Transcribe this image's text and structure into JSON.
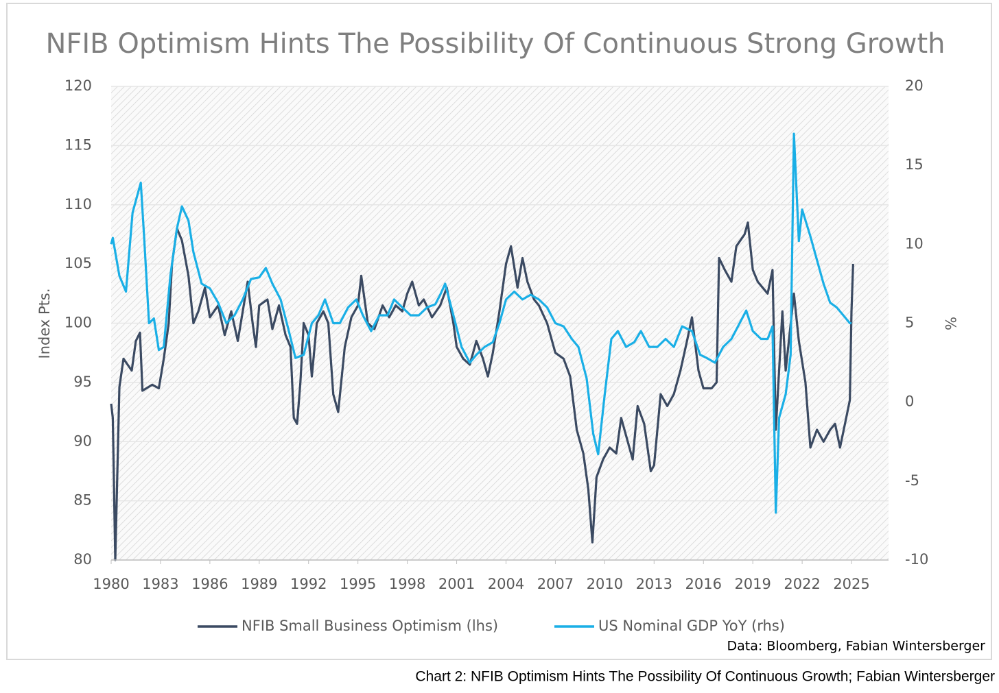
{
  "chart_data": {
    "type": "line",
    "title": "NFIB Optimism Hints The Possibility Of Continuous Strong Growth",
    "ylabel": "Index Pts.",
    "y2label": "%",
    "source": "Data: Bloomberg, Fabian Wintersberger",
    "caption": "Chart 2: NFIB Optimism Hints The Possibility Of Continuous Growth; Fabian Wintersberger",
    "xlim": [
      1980,
      2027.25
    ],
    "xticks": [
      1980,
      1983,
      1986,
      1989,
      1992,
      1995,
      1998,
      2001,
      2004,
      2007,
      2010,
      2013,
      2016,
      2019,
      2022,
      2025
    ],
    "ylim": [
      80,
      120
    ],
    "yticks": [
      80,
      85,
      90,
      95,
      100,
      105,
      110,
      115,
      120
    ],
    "y2lim": [
      -10,
      20
    ],
    "y2ticks": [
      -10,
      -5,
      0,
      5,
      10,
      15,
      20
    ],
    "grid": true,
    "legend": "bottom",
    "series": [
      {
        "name": "NFIB Small Business Optimism (lhs)",
        "color": "#3b4a62",
        "x": [
          1980.0,
          1980.1,
          1980.25,
          1980.5,
          1980.75,
          1981.0,
          1981.25,
          1981.5,
          1981.75,
          1981.9,
          1982.5,
          1982.9,
          1983.2,
          1983.5,
          1983.7,
          1984.0,
          1984.3,
          1984.7,
          1985.0,
          1985.3,
          1985.7,
          1986.0,
          1986.5,
          1986.9,
          1987.3,
          1987.7,
          1988.0,
          1988.3,
          1988.6,
          1988.8,
          1989.0,
          1989.5,
          1989.8,
          1990.2,
          1990.6,
          1990.9,
          1991.1,
          1991.3,
          1991.5,
          1991.7,
          1992.0,
          1992.2,
          1992.5,
          1992.9,
          1993.2,
          1993.5,
          1993.8,
          1994.2,
          1994.6,
          1995.0,
          1995.2,
          1995.6,
          1996.0,
          1996.5,
          1996.9,
          1997.3,
          1997.7,
          1998.0,
          1998.3,
          1998.7,
          1999.0,
          1999.5,
          2000.0,
          2000.4,
          2000.8,
          2001.0,
          2001.4,
          2001.8,
          2002.2,
          2002.6,
          2002.9,
          2003.2,
          2003.6,
          2004.0,
          2004.3,
          2004.7,
          2005.0,
          2005.3,
          2005.7,
          2006.0,
          2006.5,
          2007.0,
          2007.5,
          2007.9,
          2008.3,
          2008.7,
          2009.0,
          2009.25,
          2009.5,
          2009.9,
          2010.3,
          2010.7,
          2011.0,
          2011.3,
          2011.7,
          2012.0,
          2012.4,
          2012.8,
          2013.0,
          2013.4,
          2013.8,
          2014.2,
          2014.6,
          2015.0,
          2015.3,
          2015.7,
          2016.0,
          2016.5,
          2016.8,
          2016.95,
          2017.3,
          2017.7,
          2018.0,
          2018.5,
          2018.7,
          2019.0,
          2019.3,
          2019.6,
          2019.9,
          2020.2,
          2020.4,
          2020.8,
          2021.0,
          2021.5,
          2021.8,
          2022.2,
          2022.5,
          2022.9,
          2023.3,
          2023.7,
          2024.0,
          2024.3,
          2024.6,
          2024.9,
          2025.0,
          2025.1
        ],
        "values": [
          93.2,
          92,
          80,
          94.6,
          97,
          96.5,
          96,
          98.5,
          99.2,
          94.3,
          94.8,
          94.5,
          97,
          100,
          105,
          108,
          107,
          104,
          100,
          101,
          103,
          100.5,
          101.5,
          99,
          101,
          98.5,
          101,
          103.5,
          100,
          98,
          101.5,
          102,
          99.5,
          101.5,
          99,
          98,
          92,
          91.5,
          95,
          100,
          99,
          95.5,
          100,
          101,
          100,
          94,
          92.5,
          98,
          100.5,
          101.5,
          104,
          100,
          99.5,
          101.5,
          100.5,
          101.5,
          101,
          102.5,
          103.5,
          101.5,
          102,
          100.5,
          101.5,
          103,
          100,
          98,
          97,
          96.5,
          98.5,
          97,
          95.5,
          97.5,
          101,
          105,
          106.5,
          103,
          105.5,
          103.5,
          102,
          101.5,
          100,
          97.5,
          97,
          95.5,
          91,
          89,
          86,
          81.5,
          87,
          88.5,
          89.5,
          89,
          92,
          90.5,
          88.5,
          93,
          91.5,
          87.5,
          88,
          94,
          93,
          94,
          96,
          98.5,
          100.5,
          96,
          94.5,
          94.5,
          95,
          105.5,
          104.5,
          103.5,
          106.5,
          107.5,
          108.5,
          104.5,
          103.5,
          103,
          102.5,
          104.5,
          91,
          101,
          96,
          102.5,
          98.5,
          95,
          89.5,
          91,
          90,
          91,
          91.5,
          89.5,
          91.5,
          93.5,
          101,
          105
        ]
      },
      {
        "name": "US Nominal GDP YoY (rhs)",
        "color": "#1aafe6",
        "axis": "y2",
        "x": [
          1980.0,
          1980.1,
          1980.5,
          1980.9,
          1981.3,
          1981.8,
          1982.0,
          1982.3,
          1982.6,
          1982.9,
          1983.2,
          1983.6,
          1984.0,
          1984.3,
          1984.7,
          1985.0,
          1985.5,
          1986.0,
          1986.5,
          1987.0,
          1987.5,
          1988.0,
          1988.5,
          1989.0,
          1989.4,
          1989.8,
          1990.3,
          1990.8,
          1991.2,
          1991.7,
          1992.2,
          1992.6,
          1993.0,
          1993.5,
          1993.9,
          1994.4,
          1994.9,
          1995.3,
          1995.8,
          1996.3,
          1996.8,
          1997.2,
          1997.7,
          1998.2,
          1998.7,
          1999.2,
          1999.7,
          2000.0,
          2000.3,
          2000.8,
          2001.3,
          2001.8,
          2002.2,
          2002.7,
          2003.2,
          2003.6,
          2004.0,
          2004.5,
          2005.0,
          2005.5,
          2006.0,
          2006.5,
          2007.0,
          2007.5,
          2008.0,
          2008.4,
          2008.9,
          2009.3,
          2009.6,
          2010.0,
          2010.4,
          2010.8,
          2011.3,
          2011.8,
          2012.2,
          2012.7,
          2013.2,
          2013.7,
          2014.2,
          2014.7,
          2015.3,
          2015.8,
          2016.2,
          2016.7,
          2017.2,
          2017.7,
          2018.2,
          2018.6,
          2019.0,
          2019.5,
          2019.9,
          2020.2,
          2020.4,
          2020.6,
          2021.0,
          2021.3,
          2021.5,
          2021.8,
          2022.0,
          2022.5,
          2022.9,
          2023.3,
          2023.7,
          2024.1,
          2024.5,
          2024.9,
          2025.0
        ],
        "values": [
          10.0,
          10.4,
          8,
          7,
          12,
          13.9,
          10.5,
          5,
          5.3,
          3.3,
          3.5,
          8,
          11,
          12.4,
          11.5,
          9.5,
          7.5,
          7.2,
          6.3,
          5,
          5.5,
          6.5,
          7.8,
          7.9,
          8.5,
          7.5,
          6.5,
          4.5,
          2.8,
          3,
          5,
          5.5,
          6.5,
          5,
          5,
          6,
          6.5,
          5.5,
          4.5,
          5.5,
          5.5,
          6.5,
          6,
          5.5,
          5.5,
          6,
          6.2,
          6.8,
          7.5,
          5.5,
          3.5,
          2.5,
          3,
          3.5,
          3.8,
          5,
          6.5,
          7,
          6.5,
          6.8,
          6.5,
          6,
          5,
          4.8,
          4,
          3.5,
          1.5,
          -2,
          -3.3,
          0.5,
          4,
          4.5,
          3.5,
          3.8,
          4.5,
          3.5,
          3.5,
          4,
          3.5,
          4.8,
          4.5,
          3,
          2.8,
          2.5,
          3.5,
          4,
          5,
          5.8,
          4.5,
          4,
          4,
          4.8,
          -7,
          -1,
          0.5,
          3,
          17,
          10.2,
          12.2,
          10.5,
          9,
          7.5,
          6.3,
          6,
          5.5,
          5,
          5
        ]
      }
    ]
  }
}
